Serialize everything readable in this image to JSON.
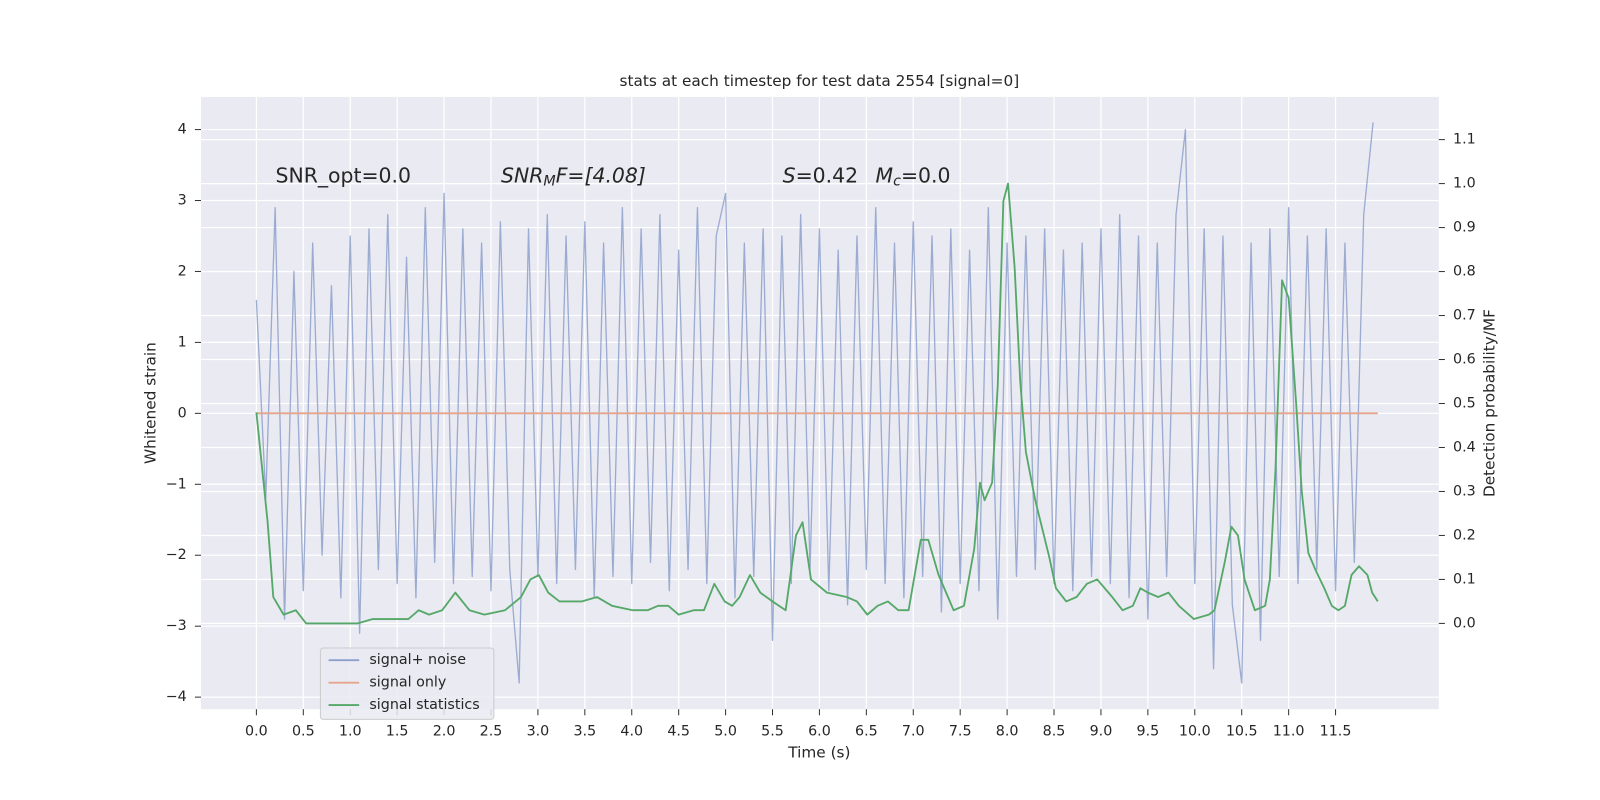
{
  "chart_data": {
    "type": "line",
    "title": "stats at each timestep for test data 2554 [signal=0]",
    "x_label": "Time (s)",
    "y_label": "Whitened strain",
    "y2_label": "Detection probability/MF",
    "xlim": [
      -0.59,
      12.6
    ],
    "ylim": [
      -4.17,
      4.46
    ],
    "y2lim": [
      -0.195,
      1.197
    ],
    "xticks": [
      {
        "value": 0,
        "label": "0.0"
      },
      0.5,
      {
        "value": 1,
        "label": "1.0"
      },
      1.5,
      {
        "value": 2,
        "label": "2.0"
      },
      2.5,
      {
        "value": 3,
        "label": "3.0"
      },
      3.5,
      {
        "value": 4,
        "label": "4.0"
      },
      4.5,
      {
        "value": 5,
        "label": "5.0"
      },
      5.5,
      {
        "value": 6,
        "label": "6.0"
      },
      6.5,
      {
        "value": 7,
        "label": "7.0"
      },
      7.5,
      {
        "value": 8,
        "label": "8.0"
      },
      8.5,
      {
        "value": 9,
        "label": "9.0"
      },
      9.5,
      {
        "value": 10,
        "label": "10.0"
      },
      10.5,
      {
        "value": 11,
        "label": "11.0"
      },
      11.5
    ],
    "yticks": [
      {
        "value": -4,
        "label": "−4"
      },
      {
        "value": -3,
        "label": "−3"
      },
      {
        "value": -2,
        "label": "−2"
      },
      {
        "value": -1,
        "label": "−1"
      },
      0,
      1,
      2,
      3,
      4
    ],
    "y2ticks": [
      {
        "value": 0,
        "label": "0.0"
      },
      0.1,
      0.2,
      0.3,
      0.4,
      0.5,
      0.6,
      0.7,
      0.8,
      0.9,
      {
        "value": 1,
        "label": "1.0"
      },
      1.1
    ],
    "grid": true,
    "legend": "lower left",
    "annotations": [
      {
        "text": "SNR_opt=0.0",
        "italic": false
      },
      {
        "text": "SNR",
        "sub": "M",
        "after": "F=[4.08]",
        "italic": true
      },
      {
        "text": "S",
        "after": "=0.42",
        "italic": true
      },
      {
        "text": "M",
        "sub": "c",
        "after": "=0.0",
        "italic": true
      }
    ],
    "series": [
      {
        "name": "signal+ noise",
        "color": "#8da0cb",
        "x": [
          0.0,
          0.1,
          0.2,
          0.3,
          0.4,
          0.5,
          0.6,
          0.7,
          0.8,
          0.9,
          1.0,
          1.1,
          1.2,
          1.3,
          1.4,
          1.5,
          1.6,
          1.7,
          1.8,
          1.9,
          2.0,
          2.1,
          2.2,
          2.3,
          2.4,
          2.5,
          2.6,
          2.7,
          2.8,
          2.9,
          3.0,
          3.1,
          3.2,
          3.3,
          3.4,
          3.5,
          3.6,
          3.7,
          3.8,
          3.9,
          4.0,
          4.1,
          4.2,
          4.3,
          4.4,
          4.5,
          4.6,
          4.7,
          4.8,
          4.9,
          5.0,
          5.1,
          5.2,
          5.3,
          5.4,
          5.5,
          5.6,
          5.7,
          5.8,
          5.9,
          6.0,
          6.1,
          6.2,
          6.3,
          6.4,
          6.5,
          6.6,
          6.7,
          6.8,
          6.9,
          7.0,
          7.1,
          7.2,
          7.3,
          7.4,
          7.5,
          7.6,
          7.7,
          7.8,
          7.9,
          8.0,
          8.1,
          8.2,
          8.3,
          8.4,
          8.5,
          8.6,
          8.7,
          8.8,
          8.9,
          9.0,
          9.1,
          9.2,
          9.3,
          9.4,
          9.5,
          9.6,
          9.7,
          9.8,
          9.9,
          10.0,
          10.1,
          10.2,
          10.3,
          10.4,
          10.5,
          10.6,
          10.7,
          10.8,
          10.9,
          11.0,
          11.1,
          11.2,
          11.3,
          11.4,
          11.5,
          11.6,
          11.7,
          11.8,
          11.9
        ],
        "values": [
          1.6,
          -1.2,
          2.9,
          -2.9,
          2.0,
          -2.5,
          2.4,
          -2.0,
          1.8,
          -2.6,
          2.5,
          -3.1,
          2.6,
          -2.2,
          2.8,
          -2.4,
          2.2,
          -2.6,
          2.9,
          -2.1,
          3.1,
          -2.4,
          2.6,
          -2.3,
          2.4,
          -2.5,
          2.7,
          -2.2,
          -3.8,
          2.6,
          -2.3,
          2.8,
          -2.4,
          2.5,
          -2.2,
          2.7,
          -2.6,
          2.4,
          -2.3,
          2.9,
          -2.4,
          2.6,
          -2.1,
          2.8,
          -2.5,
          2.3,
          -2.2,
          2.9,
          -2.4,
          2.5,
          3.1,
          -2.6,
          2.4,
          -2.3,
          2.6,
          -3.2,
          2.5,
          -2.4,
          2.8,
          -2.2,
          2.6,
          -2.5,
          2.3,
          -2.7,
          2.5,
          -2.2,
          2.9,
          -2.4,
          2.4,
          -2.6,
          2.7,
          -2.3,
          2.5,
          -2.8,
          2.6,
          -2.4,
          2.3,
          -2.5,
          2.9,
          -2.9,
          2.4,
          -2.3,
          2.5,
          -2.2,
          2.6,
          -2.4,
          2.3,
          -2.5,
          2.4,
          -2.3,
          2.6,
          -2.4,
          2.8,
          -2.6,
          2.5,
          -2.9,
          2.4,
          -2.3,
          2.8,
          4.0,
          -2.4,
          2.6,
          -3.6,
          2.5,
          -2.7,
          -3.8,
          2.4,
          -3.2,
          2.6,
          -2.3,
          2.9,
          -2.4,
          2.5,
          -2.2,
          2.6,
          -2.5,
          2.4,
          -2.1,
          2.8,
          4.1
        ]
      },
      {
        "name": "signal only",
        "color": "#e5a58a",
        "x": [
          0.0,
          11.95
        ],
        "values": [
          0,
          0
        ]
      },
      {
        "name": "signal statistics",
        "color": "#55a868",
        "axis": "y2",
        "x": [
          0.0,
          0.12,
          0.18,
          0.29,
          0.42,
          0.53,
          0.75,
          1.08,
          1.24,
          1.4,
          1.62,
          1.73,
          1.84,
          1.98,
          2.12,
          2.27,
          2.43,
          2.65,
          2.82,
          2.92,
          3.01,
          3.11,
          3.23,
          3.47,
          3.63,
          3.79,
          4.01,
          4.17,
          4.28,
          4.39,
          4.5,
          4.66,
          4.77,
          4.88,
          4.99,
          5.07,
          5.15,
          5.26,
          5.37,
          5.5,
          5.64,
          5.75,
          5.82,
          5.91,
          6.08,
          6.29,
          6.4,
          6.51,
          6.62,
          6.73,
          6.84,
          6.95,
          7.08,
          7.16,
          7.27,
          7.43,
          7.54,
          7.65,
          7.71,
          7.76,
          7.84,
          7.9,
          7.96,
          8.01,
          8.08,
          8.14,
          8.2,
          8.3,
          8.45,
          8.52,
          8.63,
          8.74,
          8.85,
          8.96,
          9.12,
          9.23,
          9.34,
          9.42,
          9.5,
          9.61,
          9.72,
          9.83,
          9.99,
          10.15,
          10.21,
          10.32,
          10.39,
          10.46,
          10.53,
          10.64,
          10.75,
          10.8,
          10.86,
          10.93,
          11.0,
          11.08,
          11.14,
          11.21,
          11.29,
          11.38,
          11.46,
          11.53,
          11.6,
          11.67,
          11.75,
          11.84,
          11.89,
          11.95
        ],
        "values": [
          0.48,
          0.23,
          0.06,
          0.02,
          0.03,
          0.0,
          0.0,
          0.0,
          0.01,
          0.01,
          0.01,
          0.03,
          0.02,
          0.03,
          0.07,
          0.03,
          0.02,
          0.03,
          0.06,
          0.1,
          0.11,
          0.07,
          0.05,
          0.05,
          0.06,
          0.04,
          0.03,
          0.03,
          0.04,
          0.04,
          0.02,
          0.03,
          0.03,
          0.09,
          0.05,
          0.04,
          0.06,
          0.11,
          0.07,
          0.05,
          0.03,
          0.2,
          0.23,
          0.1,
          0.07,
          0.06,
          0.05,
          0.02,
          0.04,
          0.05,
          0.03,
          0.03,
          0.19,
          0.19,
          0.11,
          0.03,
          0.04,
          0.17,
          0.32,
          0.28,
          0.32,
          0.54,
          0.96,
          1.0,
          0.81,
          0.55,
          0.39,
          0.28,
          0.15,
          0.08,
          0.05,
          0.06,
          0.09,
          0.1,
          0.06,
          0.03,
          0.04,
          0.08,
          0.07,
          0.06,
          0.07,
          0.04,
          0.01,
          0.02,
          0.03,
          0.14,
          0.22,
          0.2,
          0.1,
          0.03,
          0.04,
          0.1,
          0.35,
          0.78,
          0.74,
          0.5,
          0.3,
          0.16,
          0.12,
          0.08,
          0.04,
          0.03,
          0.04,
          0.11,
          0.13,
          0.11,
          0.07,
          0.05
        ]
      }
    ]
  }
}
